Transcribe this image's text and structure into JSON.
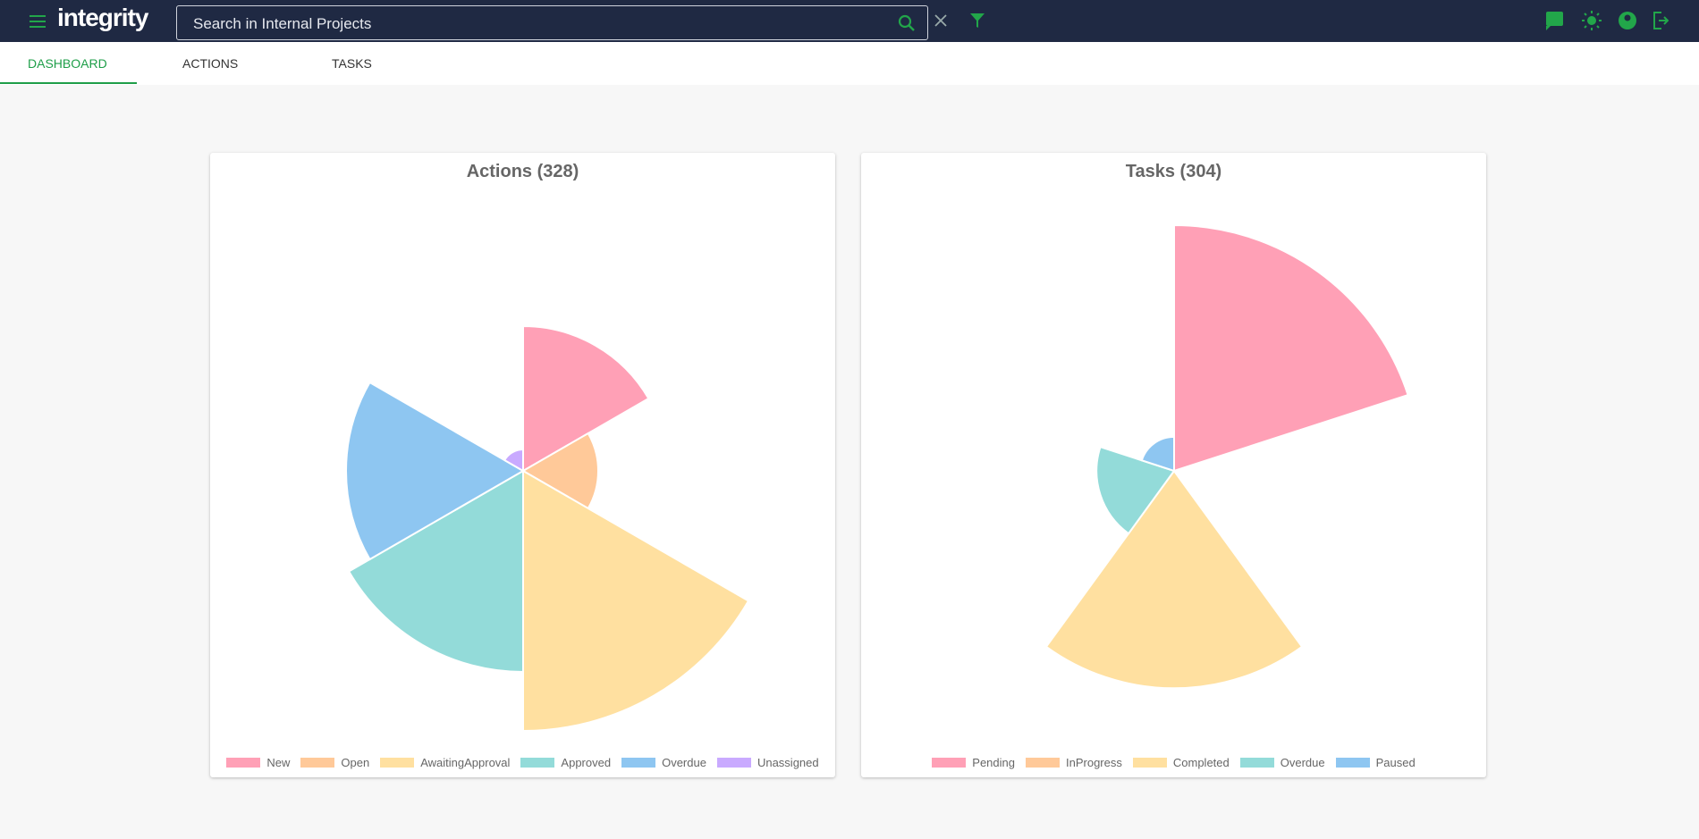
{
  "header": {
    "logo": "integrity",
    "search_placeholder": "Search in Internal Projects"
  },
  "tabs": [
    "DASHBOARD",
    "ACTIONS",
    "TASKS"
  ],
  "chart_data": [
    {
      "type": "polarArea",
      "title": "Actions (328)",
      "categories": [
        "New",
        "Open",
        "AwaitingApproval",
        "Approved",
        "Overdue",
        "Unassigned"
      ],
      "values": [
        54,
        28,
        97,
        75,
        66,
        8
      ],
      "colors": [
        "#ffa0b6",
        "#ffc999",
        "#ffe0a0",
        "#93dbd9",
        "#8ec6f1",
        "#c9aaff"
      ]
    },
    {
      "type": "polarArea",
      "title": "Tasks (304)",
      "categories": [
        "Pending",
        "InProgress",
        "Completed",
        "Overdue",
        "Paused"
      ],
      "values": [
        130,
        0,
        115,
        41,
        18
      ],
      "colors": [
        "#ffa0b6",
        "#ffc999",
        "#ffe0a0",
        "#93dbd9",
        "#8ec6f1"
      ]
    }
  ]
}
